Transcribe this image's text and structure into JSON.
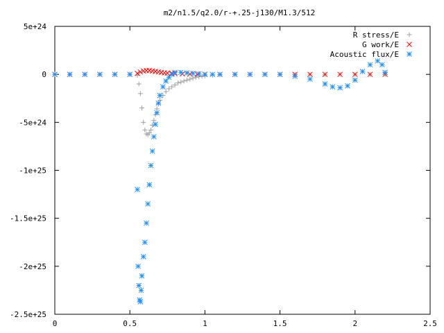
{
  "chart_data": {
    "type": "scatter",
    "title": "m2/n1.5/q2.0/r-+.25-j130/M1.3/512",
    "xlabel": "",
    "ylabel": "",
    "xlim": [
      0,
      2.5
    ],
    "ylim": [
      -2.5e+25,
      5e+24
    ],
    "x_ticks": [
      0,
      0.5,
      1,
      1.5,
      2,
      2.5
    ],
    "x_tick_labels": [
      "0",
      "0.5",
      "1",
      "1.5",
      "2",
      "2.5"
    ],
    "y_ticks": [
      5e+24,
      0,
      -5e+24,
      -1e+25,
      -1.5e+25,
      -2e+25,
      -2.5e+25
    ],
    "y_tick_labels": [
      "5e+24",
      "0",
      "-5e+24",
      "-1e+25",
      "-1.5e+25",
      "-2e+25",
      "-2.5e+25"
    ],
    "grid": false,
    "legend_position": "top-right",
    "series": [
      {
        "name": "R stress/E",
        "marker": "plus",
        "color": "#a0a0a0",
        "x": [
          0,
          0.1,
          0.2,
          0.3,
          0.4,
          0.5,
          0.55,
          0.56,
          0.57,
          0.58,
          0.59,
          0.6,
          0.61,
          0.62,
          0.63,
          0.64,
          0.65,
          0.66,
          0.67,
          0.68,
          0.69,
          0.7,
          0.72,
          0.74,
          0.76,
          0.78,
          0.8,
          0.82,
          0.84,
          0.86,
          0.88,
          0.9,
          0.92,
          0.94,
          0.96,
          0.98,
          1.0,
          1.05,
          1.1,
          1.2,
          1.3,
          1.4,
          1.5,
          1.6,
          1.7,
          1.8,
          1.9,
          2.0,
          2.1,
          2.2
        ],
        "y": [
          0,
          0,
          0,
          0,
          0,
          0,
          -1e+23,
          -1e+24,
          -2e+24,
          -3.5e+24,
          -5e+24,
          -5.8e+24,
          -6.2e+24,
          -6.3e+24,
          -6.1e+24,
          -5.8e+24,
          -5.3e+24,
          -4.8e+24,
          -4.2e+24,
          -3.6e+24,
          -3.1e+24,
          -2.7e+24,
          -2.2e+24,
          -1.8e+24,
          -1.5e+24,
          -1.3e+24,
          -1.1e+24,
          -9e+23,
          -8e+23,
          -7e+23,
          -6e+23,
          -5e+23,
          -4e+23,
          -3e+23,
          -2.5e+23,
          -2e+23,
          -1.5e+23,
          -1e+23,
          -5e+22,
          0,
          0,
          0,
          0,
          0,
          0,
          0,
          0,
          0,
          0,
          0
        ]
      },
      {
        "name": "G work/E",
        "marker": "cross",
        "color": "#ff0000",
        "x": [
          0,
          0.1,
          0.2,
          0.3,
          0.4,
          0.5,
          0.55,
          0.57,
          0.59,
          0.61,
          0.63,
          0.65,
          0.67,
          0.69,
          0.71,
          0.73,
          0.75,
          0.78,
          0.8,
          0.85,
          0.9,
          0.95,
          1.0,
          1.1,
          1.2,
          1.3,
          1.4,
          1.5,
          1.6,
          1.7,
          1.8,
          1.9,
          2.0,
          2.1,
          2.2
        ],
        "y": [
          0,
          0,
          0,
          0,
          0,
          0,
          1e+23,
          2.5e+23,
          3.5e+23,
          4e+23,
          4e+23,
          3.5e+23,
          3e+23,
          2.5e+23,
          2e+23,
          1.6e+23,
          1.3e+23,
          1e+23,
          8e+22,
          5e+22,
          3e+22,
          2e+22,
          1e+22,
          0,
          0,
          0,
          0,
          0,
          0,
          0,
          0,
          0,
          0,
          0,
          0
        ]
      },
      {
        "name": "Acoustic flux/E",
        "marker": "star",
        "color": "#1e90ff",
        "x": [
          0,
          0.1,
          0.2,
          0.3,
          0.4,
          0.5,
          0.55,
          0.555,
          0.56,
          0.565,
          0.57,
          0.575,
          0.58,
          0.59,
          0.6,
          0.61,
          0.62,
          0.63,
          0.64,
          0.65,
          0.66,
          0.67,
          0.68,
          0.69,
          0.7,
          0.72,
          0.74,
          0.76,
          0.78,
          0.8,
          0.84,
          0.88,
          0.92,
          0.96,
          1.0,
          1.05,
          1.1,
          1.2,
          1.3,
          1.4,
          1.5,
          1.6,
          1.7,
          1.8,
          1.85,
          1.9,
          1.95,
          2.0,
          2.05,
          2.1,
          2.15,
          2.18,
          2.2
        ],
        "y": [
          0,
          0,
          0,
          0,
          0,
          0,
          -1.2e+25,
          -2e+25,
          -2.2e+25,
          -2.35e+25,
          -2.37e+25,
          -2.25e+25,
          -2.1e+25,
          -1.9e+25,
          -1.75e+25,
          -1.55e+25,
          -1.35e+25,
          -1.15e+25,
          -9.5e+24,
          -8e+24,
          -6.5e+24,
          -5.2e+24,
          -4e+24,
          -3e+24,
          -2.2e+24,
          -1.3e+24,
          -7e+23,
          -3e+23,
          0,
          2e+23,
          2e+23,
          1.5e+23,
          1e+23,
          5e+22,
          0,
          0,
          0,
          0,
          0,
          0,
          0,
          -2e+23,
          -5e+23,
          -1e+24,
          -1.3e+24,
          -1.4e+24,
          -1.2e+24,
          -6e+23,
          3e+23,
          1e+24,
          1.4e+24,
          1e+24,
          2e+23
        ]
      }
    ]
  }
}
